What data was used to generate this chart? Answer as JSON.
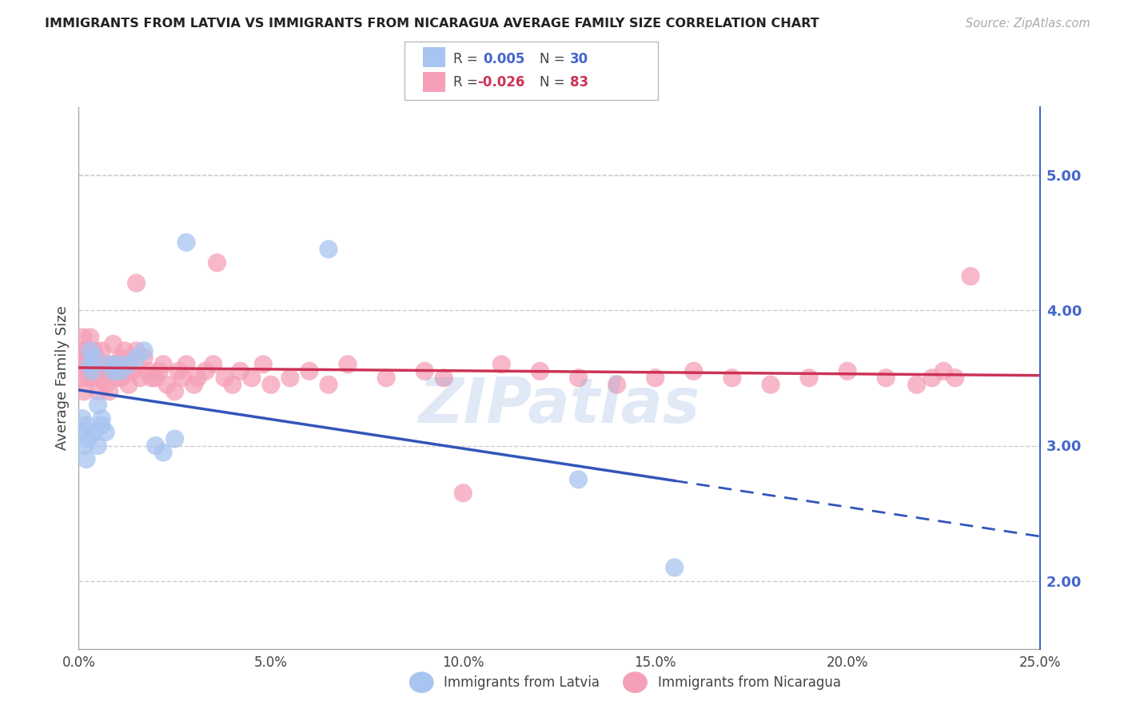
{
  "title": "IMMIGRANTS FROM LATVIA VS IMMIGRANTS FROM NICARAGUA AVERAGE FAMILY SIZE CORRELATION CHART",
  "source_text": "Source: ZipAtlas.com",
  "ylabel": "Average Family Size",
  "xlim": [
    0.0,
    0.25
  ],
  "ylim": [
    1.5,
    5.5
  ],
  "yticks": [
    2.0,
    3.0,
    4.0,
    5.0
  ],
  "xticks": [
    0.0,
    0.05,
    0.1,
    0.15,
    0.2,
    0.25
  ],
  "xticklabels": [
    "0.0%",
    "5.0%",
    "10.0%",
    "15.0%",
    "20.0%",
    "25.0%"
  ],
  "yticklabels_right": [
    "2.00",
    "3.00",
    "4.00",
    "5.00"
  ],
  "color_latvia": "#a8c4f0",
  "color_nicaragua": "#f5a0b8",
  "color_line_latvia": "#3355bb",
  "color_line_nicaragua": "#cc3355",
  "color_axis_right": "#4466cc",
  "background_color": "#ffffff",
  "grid_color": "#cccccc",
  "latvia_x": [
    0.0005,
    0.001,
    0.0015,
    0.002,
    0.002,
    0.0025,
    0.003,
    0.003,
    0.0035,
    0.004,
    0.004,
    0.005,
    0.005,
    0.006,
    0.006,
    0.007,
    0.008,
    0.009,
    0.01,
    0.011,
    0.013,
    0.015,
    0.017,
    0.02,
    0.022,
    0.025,
    0.028,
    0.065,
    0.13,
    0.155
  ],
  "latvia_y": [
    3.1,
    3.2,
    3.0,
    2.9,
    3.15,
    3.05,
    3.6,
    3.7,
    3.55,
    3.65,
    3.1,
    3.0,
    3.3,
    3.2,
    3.15,
    3.1,
    3.6,
    3.55,
    3.6,
    3.55,
    3.6,
    3.65,
    3.7,
    3.0,
    2.95,
    3.05,
    4.5,
    4.45,
    2.75,
    2.1
  ],
  "nicaragua_x": [
    0.0003,
    0.0006,
    0.001,
    0.0012,
    0.0015,
    0.002,
    0.002,
    0.0025,
    0.003,
    0.003,
    0.0035,
    0.004,
    0.004,
    0.0045,
    0.005,
    0.005,
    0.0055,
    0.006,
    0.006,
    0.007,
    0.007,
    0.008,
    0.008,
    0.009,
    0.009,
    0.01,
    0.01,
    0.011,
    0.011,
    0.012,
    0.012,
    0.013,
    0.013,
    0.014,
    0.015,
    0.015,
    0.016,
    0.017,
    0.018,
    0.019,
    0.02,
    0.021,
    0.022,
    0.023,
    0.025,
    0.026,
    0.027,
    0.028,
    0.03,
    0.031,
    0.033,
    0.035,
    0.036,
    0.038,
    0.04,
    0.042,
    0.045,
    0.048,
    0.05,
    0.055,
    0.06,
    0.065,
    0.07,
    0.08,
    0.09,
    0.095,
    0.1,
    0.11,
    0.12,
    0.13,
    0.14,
    0.15,
    0.16,
    0.17,
    0.18,
    0.19,
    0.2,
    0.21,
    0.218,
    0.222,
    0.225,
    0.228,
    0.232
  ],
  "nicaragua_y": [
    3.5,
    3.6,
    3.7,
    3.8,
    3.4,
    3.6,
    3.7,
    3.5,
    3.6,
    3.8,
    3.55,
    3.7,
    3.5,
    3.65,
    3.55,
    3.4,
    3.6,
    3.5,
    3.7,
    3.6,
    3.45,
    3.55,
    3.4,
    3.6,
    3.75,
    3.5,
    3.6,
    3.5,
    3.65,
    3.7,
    3.55,
    3.6,
    3.45,
    3.55,
    3.7,
    4.2,
    3.5,
    3.65,
    3.55,
    3.5,
    3.5,
    3.55,
    3.6,
    3.45,
    3.4,
    3.55,
    3.5,
    3.6,
    3.45,
    3.5,
    3.55,
    3.6,
    4.35,
    3.5,
    3.45,
    3.55,
    3.5,
    3.6,
    3.45,
    3.5,
    3.55,
    3.45,
    3.6,
    3.5,
    3.55,
    3.5,
    2.65,
    3.6,
    3.55,
    3.5,
    3.45,
    3.5,
    3.55,
    3.5,
    3.45,
    3.5,
    3.55,
    3.5,
    3.45,
    3.5,
    3.55,
    3.5,
    4.25
  ]
}
